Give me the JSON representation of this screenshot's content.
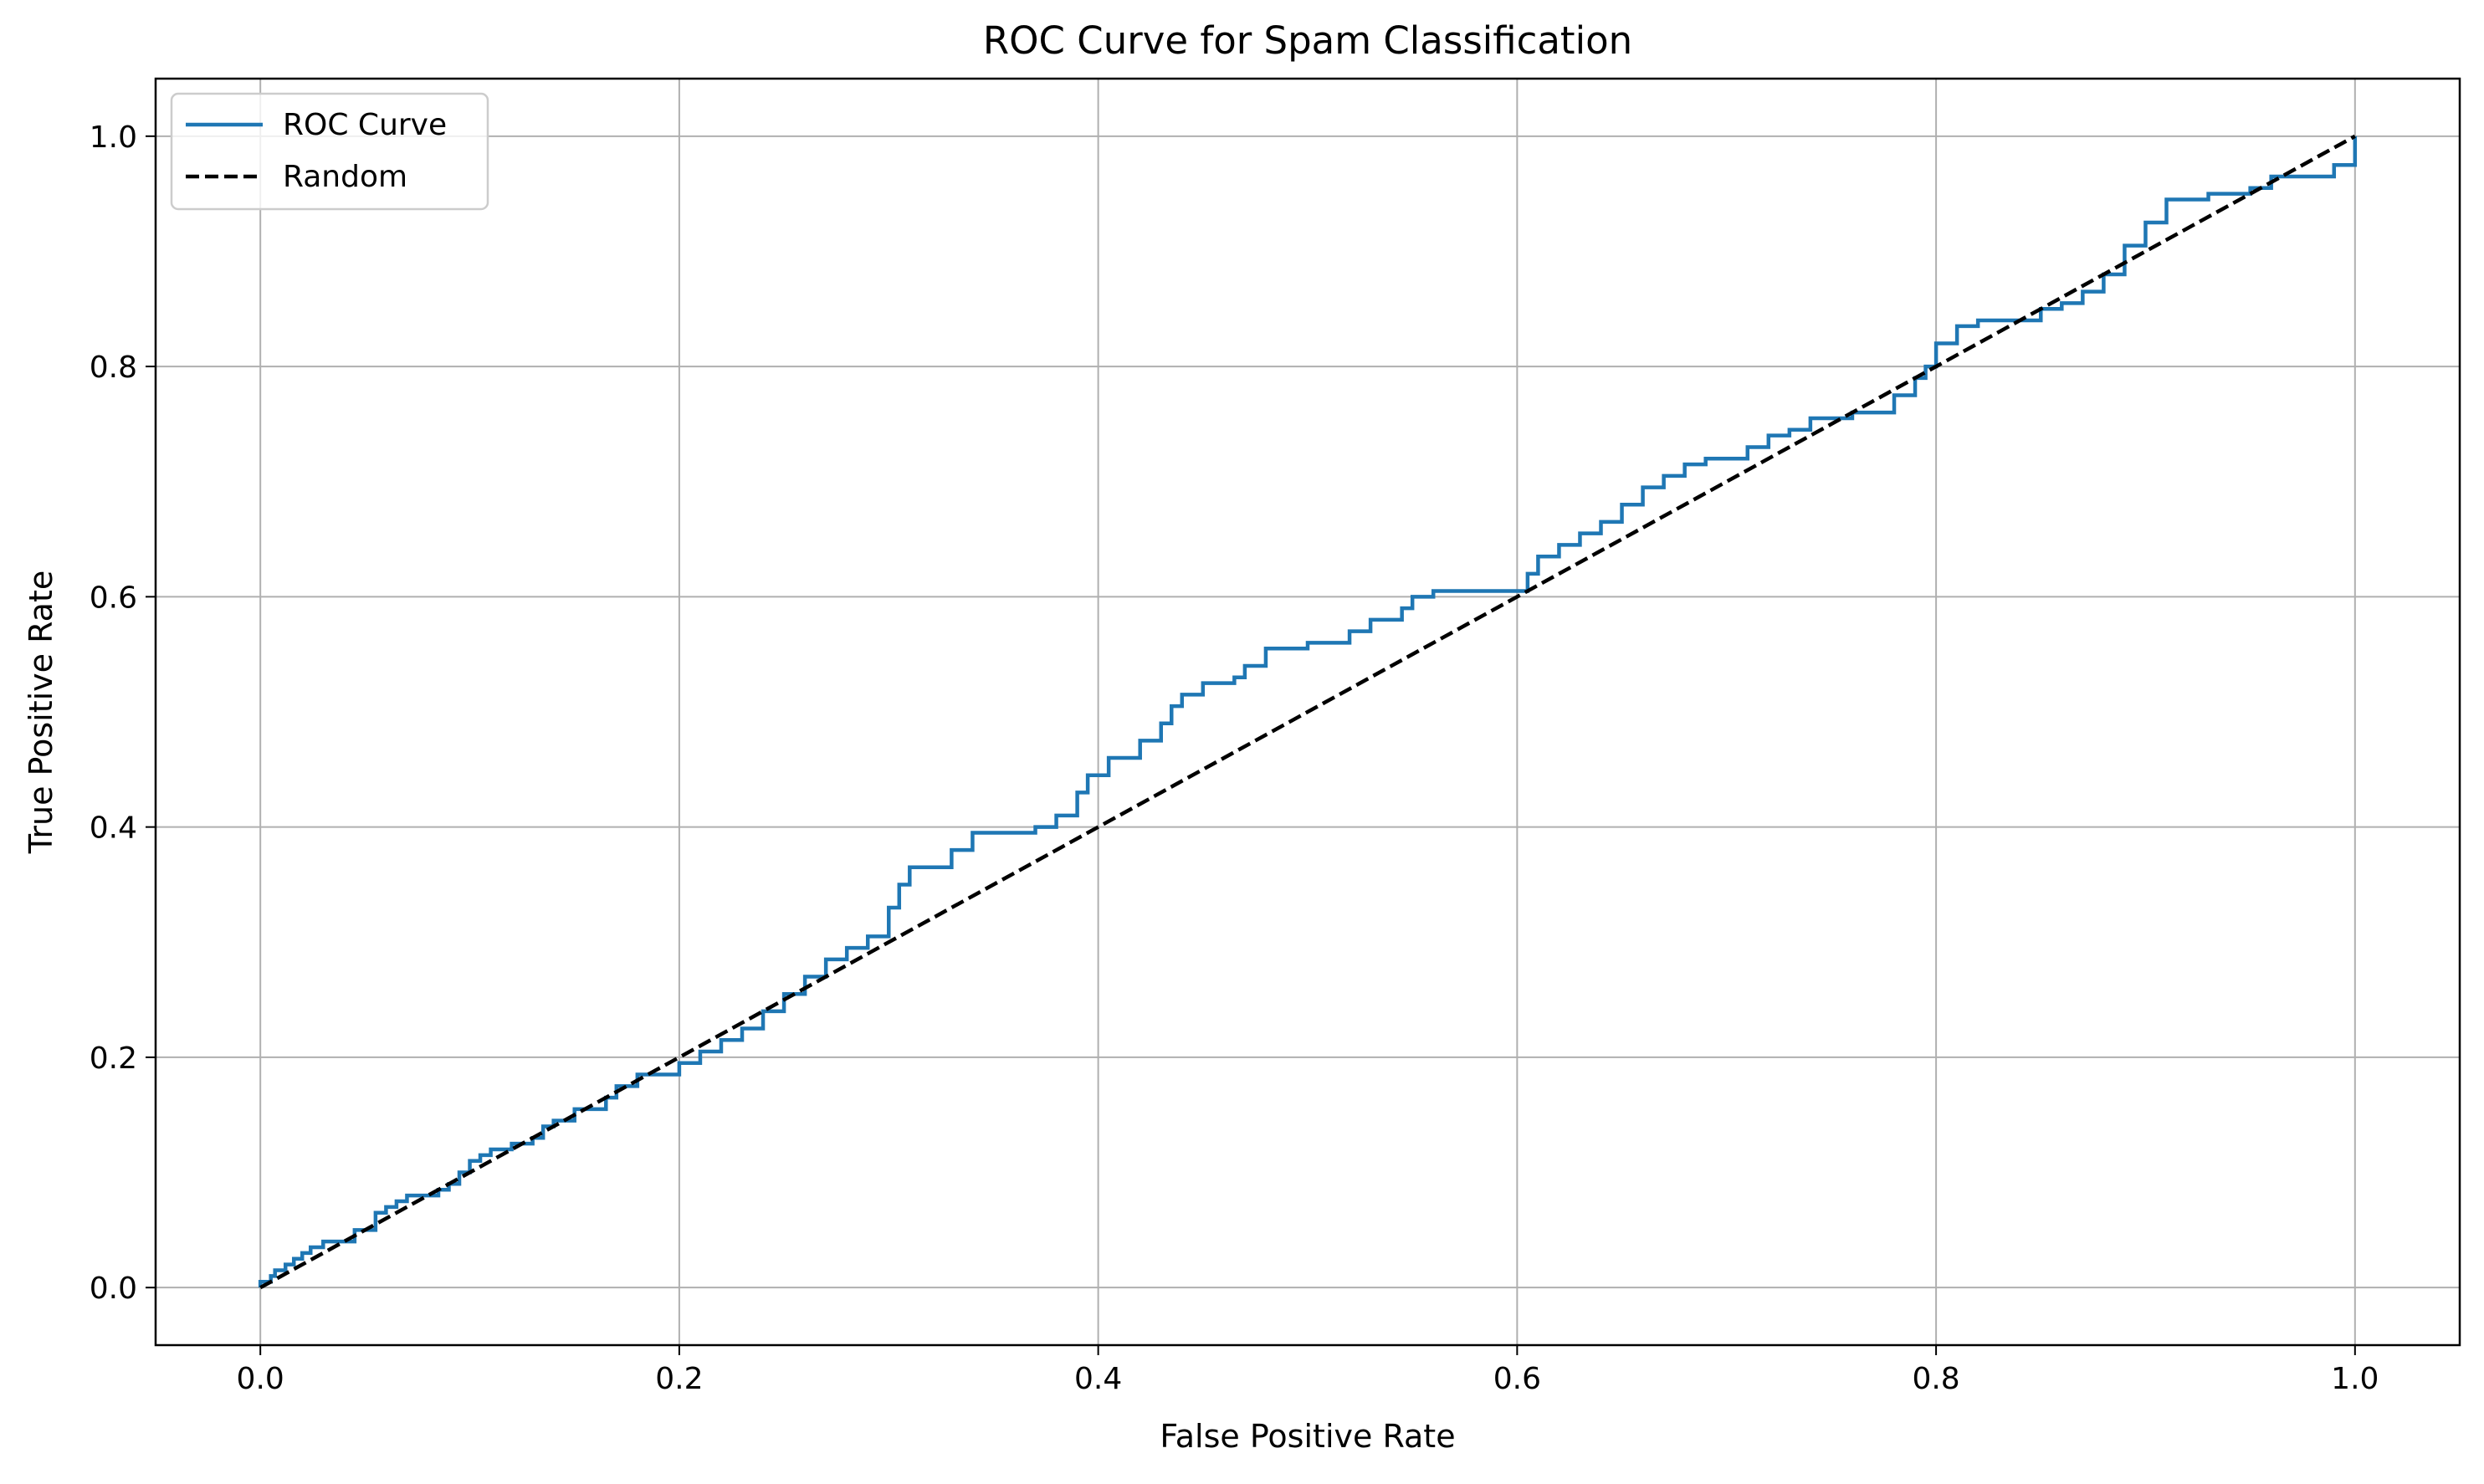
{
  "chart_data": {
    "type": "line",
    "title": "ROC Curve for Spam Classification",
    "xlabel": "False Positive Rate",
    "ylabel": "True Positive Rate",
    "xlim": [
      -0.05,
      1.05
    ],
    "ylim": [
      -0.05,
      1.05
    ],
    "xticks": [
      0.0,
      0.2,
      0.4,
      0.6,
      0.8,
      1.0
    ],
    "yticks": [
      0.0,
      0.2,
      0.4,
      0.6,
      0.8,
      1.0
    ],
    "xtick_labels": [
      "0.0",
      "0.2",
      "0.4",
      "0.6",
      "0.8",
      "1.0"
    ],
    "ytick_labels": [
      "0.0",
      "0.2",
      "0.4",
      "0.6",
      "0.8",
      "1.0"
    ],
    "grid": true,
    "legend_position": "upper-left",
    "series": [
      {
        "name": "ROC Curve",
        "color": "#1f77b4",
        "style": "solid",
        "step": true,
        "x": [
          0.0,
          0.0,
          0.005,
          0.007,
          0.012,
          0.016,
          0.02,
          0.024,
          0.03,
          0.045,
          0.055,
          0.06,
          0.065,
          0.07,
          0.085,
          0.09,
          0.095,
          0.1,
          0.105,
          0.11,
          0.12,
          0.13,
          0.135,
          0.14,
          0.15,
          0.165,
          0.17,
          0.18,
          0.2,
          0.21,
          0.22,
          0.23,
          0.24,
          0.25,
          0.26,
          0.27,
          0.28,
          0.29,
          0.3,
          0.305,
          0.31,
          0.33,
          0.34,
          0.37,
          0.38,
          0.39,
          0.395,
          0.405,
          0.42,
          0.43,
          0.435,
          0.44,
          0.45,
          0.465,
          0.47,
          0.48,
          0.5,
          0.51,
          0.52,
          0.53,
          0.545,
          0.55,
          0.56,
          0.6,
          0.605,
          0.61,
          0.62,
          0.63,
          0.64,
          0.65,
          0.66,
          0.67,
          0.68,
          0.69,
          0.71,
          0.72,
          0.73,
          0.74,
          0.76,
          0.78,
          0.79,
          0.795,
          0.8,
          0.81,
          0.82,
          0.85,
          0.86,
          0.87,
          0.88,
          0.89,
          0.9,
          0.91,
          0.93,
          0.95,
          0.96,
          0.99,
          1.0
        ],
        "y": [
          0.0,
          0.005,
          0.01,
          0.015,
          0.02,
          0.025,
          0.03,
          0.035,
          0.04,
          0.05,
          0.065,
          0.07,
          0.075,
          0.08,
          0.085,
          0.09,
          0.1,
          0.11,
          0.115,
          0.12,
          0.125,
          0.13,
          0.14,
          0.145,
          0.155,
          0.165,
          0.175,
          0.185,
          0.195,
          0.205,
          0.215,
          0.225,
          0.24,
          0.255,
          0.27,
          0.285,
          0.295,
          0.305,
          0.33,
          0.35,
          0.365,
          0.38,
          0.395,
          0.4,
          0.41,
          0.43,
          0.445,
          0.46,
          0.475,
          0.49,
          0.505,
          0.515,
          0.525,
          0.53,
          0.54,
          0.555,
          0.56,
          0.56,
          0.57,
          0.58,
          0.59,
          0.6,
          0.605,
          0.605,
          0.62,
          0.635,
          0.645,
          0.655,
          0.665,
          0.68,
          0.695,
          0.705,
          0.715,
          0.72,
          0.73,
          0.74,
          0.745,
          0.755,
          0.76,
          0.775,
          0.79,
          0.8,
          0.82,
          0.835,
          0.84,
          0.85,
          0.855,
          0.865,
          0.88,
          0.905,
          0.925,
          0.945,
          0.95,
          0.955,
          0.965,
          0.975,
          1.0
        ]
      },
      {
        "name": "Random",
        "color": "#000000",
        "style": "dashed",
        "x": [
          0.0,
          1.0
        ],
        "y": [
          0.0,
          1.0
        ]
      }
    ]
  }
}
